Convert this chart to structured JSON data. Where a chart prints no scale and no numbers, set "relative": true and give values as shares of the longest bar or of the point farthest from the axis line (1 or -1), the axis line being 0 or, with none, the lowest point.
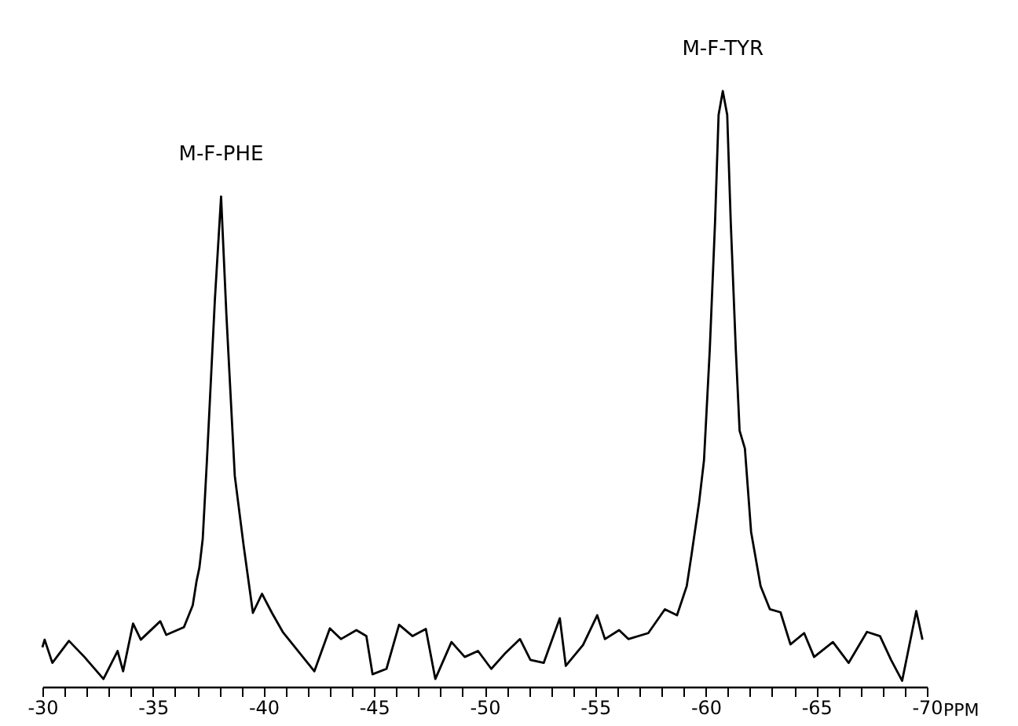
{
  "chart_data": {
    "type": "line",
    "relative": true,
    "xlabel": "PPM",
    "color": "#000000",
    "x": [
      -30,
      -30.1,
      -30.45,
      -31.2,
      -31.9,
      -32.76,
      -33.4,
      -33.65,
      -34.1,
      -34.45,
      -35.33,
      -35.6,
      -36.4,
      -36.8,
      -36.97,
      -37.1,
      -37.25,
      -37.44,
      -37.8,
      -38.08,
      -38.32,
      -38.7,
      -39.1,
      -39.52,
      -39.93,
      -40.38,
      -40.87,
      -42.3,
      -43.0,
      -43.5,
      -44.2,
      -44.65,
      -44.93,
      -45.56,
      -46.13,
      -46.74,
      -47.34,
      -47.77,
      -48.5,
      -49.1,
      -49.7,
      -50.3,
      -50.9,
      -51.6,
      -52.07,
      -52.67,
      -53.4,
      -53.67,
      -54.45,
      -55.09,
      -55.44,
      -56.08,
      -56.5,
      -57.4,
      -58.15,
      -58.7,
      -59.14,
      -59.35,
      -59.7,
      -59.92,
      -60.18,
      -60.42,
      -60.58,
      -60.77,
      -60.97,
      -61.13,
      -61.36,
      -61.53,
      -61.77,
      -62.05,
      -62.48,
      -62.9,
      -63.38,
      -63.83,
      -64.45,
      -64.9,
      -65.75,
      -66.46,
      -67.29,
      -67.88,
      -68.38,
      -68.88,
      -69.52,
      -69.8
    ],
    "values": [
      0.066,
      0.079,
      0.04,
      0.077,
      0.05,
      0.013,
      0.06,
      0.026,
      0.106,
      0.079,
      0.11,
      0.087,
      0.1,
      0.137,
      0.177,
      0.2,
      0.248,
      0.38,
      0.65,
      0.823,
      0.625,
      0.354,
      0.237,
      0.124,
      0.156,
      0.124,
      0.092,
      0.026,
      0.098,
      0.08,
      0.095,
      0.085,
      0.021,
      0.03,
      0.104,
      0.085,
      0.097,
      0.013,
      0.075,
      0.05,
      0.06,
      0.03,
      0.055,
      0.08,
      0.045,
      0.04,
      0.115,
      0.035,
      0.07,
      0.12,
      0.08,
      0.095,
      0.08,
      0.09,
      0.13,
      0.12,
      0.169,
      0.22,
      0.31,
      0.38,
      0.565,
      0.78,
      0.96,
      1,
      0.96,
      0.78,
      0.565,
      0.43,
      0.4,
      0.26,
      0.169,
      0.13,
      0.125,
      0.071,
      0.09,
      0.05,
      0.075,
      0.04,
      0.092,
      0.085,
      0.045,
      0.01,
      0.127,
      0.079
    ],
    "xlim": [
      -30,
      -70
    ],
    "xticks": [
      -30,
      {
        "value": -31,
        "label": null
      },
      {
        "value": -32,
        "label": null
      },
      {
        "value": -33,
        "label": null
      },
      {
        "value": -34,
        "label": null
      },
      -35,
      {
        "value": -36,
        "label": null
      },
      {
        "value": -37,
        "label": null
      },
      {
        "value": -38,
        "label": null
      },
      {
        "value": -39,
        "label": null
      },
      -40,
      {
        "value": -41,
        "label": null
      },
      {
        "value": -42,
        "label": null
      },
      {
        "value": -43,
        "label": null
      },
      {
        "value": -44,
        "label": null
      },
      -45,
      {
        "value": -46,
        "label": null
      },
      {
        "value": -47,
        "label": null
      },
      {
        "value": -48,
        "label": null
      },
      {
        "value": -49,
        "label": null
      },
      -50,
      {
        "value": -51,
        "label": null
      },
      {
        "value": -52,
        "label": null
      },
      {
        "value": -53,
        "label": null
      },
      {
        "value": -54,
        "label": null
      },
      -55,
      {
        "value": -56,
        "label": null
      },
      {
        "value": -57,
        "label": null
      },
      {
        "value": -58,
        "label": null
      },
      {
        "value": -59,
        "label": null
      },
      -60,
      {
        "value": -61,
        "label": null
      },
      {
        "value": -62,
        "label": null
      },
      {
        "value": -63,
        "label": null
      },
      {
        "value": -64,
        "label": null
      },
      -65,
      {
        "value": -66,
        "label": null
      },
      {
        "value": -67,
        "label": null
      },
      {
        "value": -68,
        "label": null
      },
      {
        "value": -69,
        "label": null
      },
      -70
    ],
    "annotations": [
      {
        "text": "M-F-PHE",
        "x": -38.08,
        "y": 0.823
      },
      {
        "text": "M-F-TYR",
        "x": -60.77,
        "y": 1
      }
    ]
  }
}
